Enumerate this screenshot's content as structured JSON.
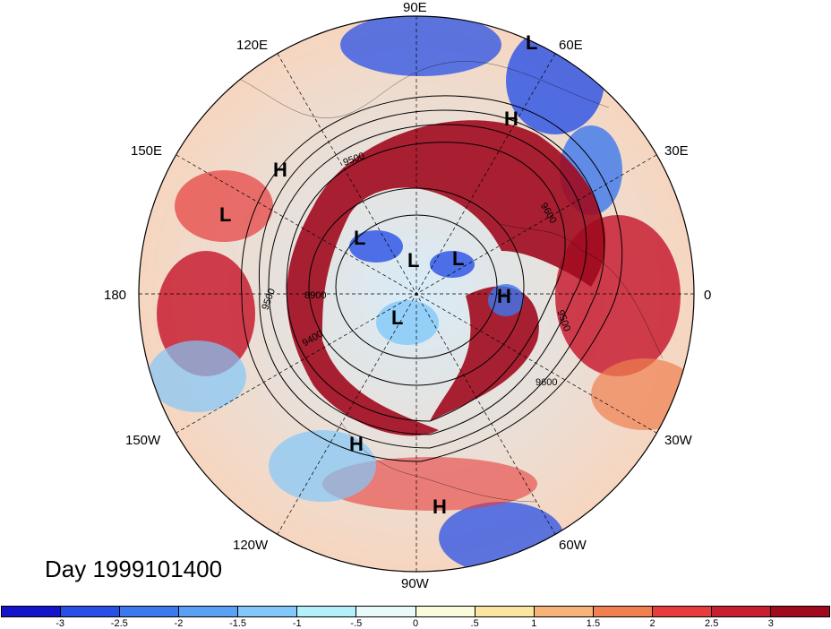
{
  "title": "Day 1999101400",
  "map": {
    "projection": "north-polar-stereographic",
    "longitude_labels": [
      {
        "text": "90E"
      },
      {
        "text": "60E"
      },
      {
        "text": "30E"
      },
      {
        "text": "0"
      },
      {
        "text": "30W"
      },
      {
        "text": "60W"
      },
      {
        "text": "90W"
      },
      {
        "text": "120W"
      },
      {
        "text": "150W"
      },
      {
        "text": "180"
      },
      {
        "text": "150E"
      },
      {
        "text": "120E"
      }
    ],
    "pressure_centers": [
      "L",
      "H",
      "H",
      "L",
      "L",
      "L",
      "L",
      "H",
      "L",
      "H",
      "H"
    ],
    "contour_labels": [
      "9500",
      "9500",
      "8900",
      "9400",
      "9600",
      "9500",
      "9600"
    ]
  },
  "colorbar": {
    "colors": [
      "#1414c8",
      "#2850e6",
      "#3c78ee",
      "#5aa0f5",
      "#82c8fa",
      "#b4f0fa",
      "#e8fafa",
      "#fafadc",
      "#fae6a0",
      "#f8b478",
      "#f08050",
      "#e63c3c",
      "#c81e32",
      "#a00a1e"
    ],
    "ticks": [
      "-3",
      "-2.5",
      "-2",
      "-1.5",
      "-1",
      "-.5",
      "0",
      ".5",
      "1",
      "1.5",
      "2",
      "2.5",
      "3"
    ]
  }
}
